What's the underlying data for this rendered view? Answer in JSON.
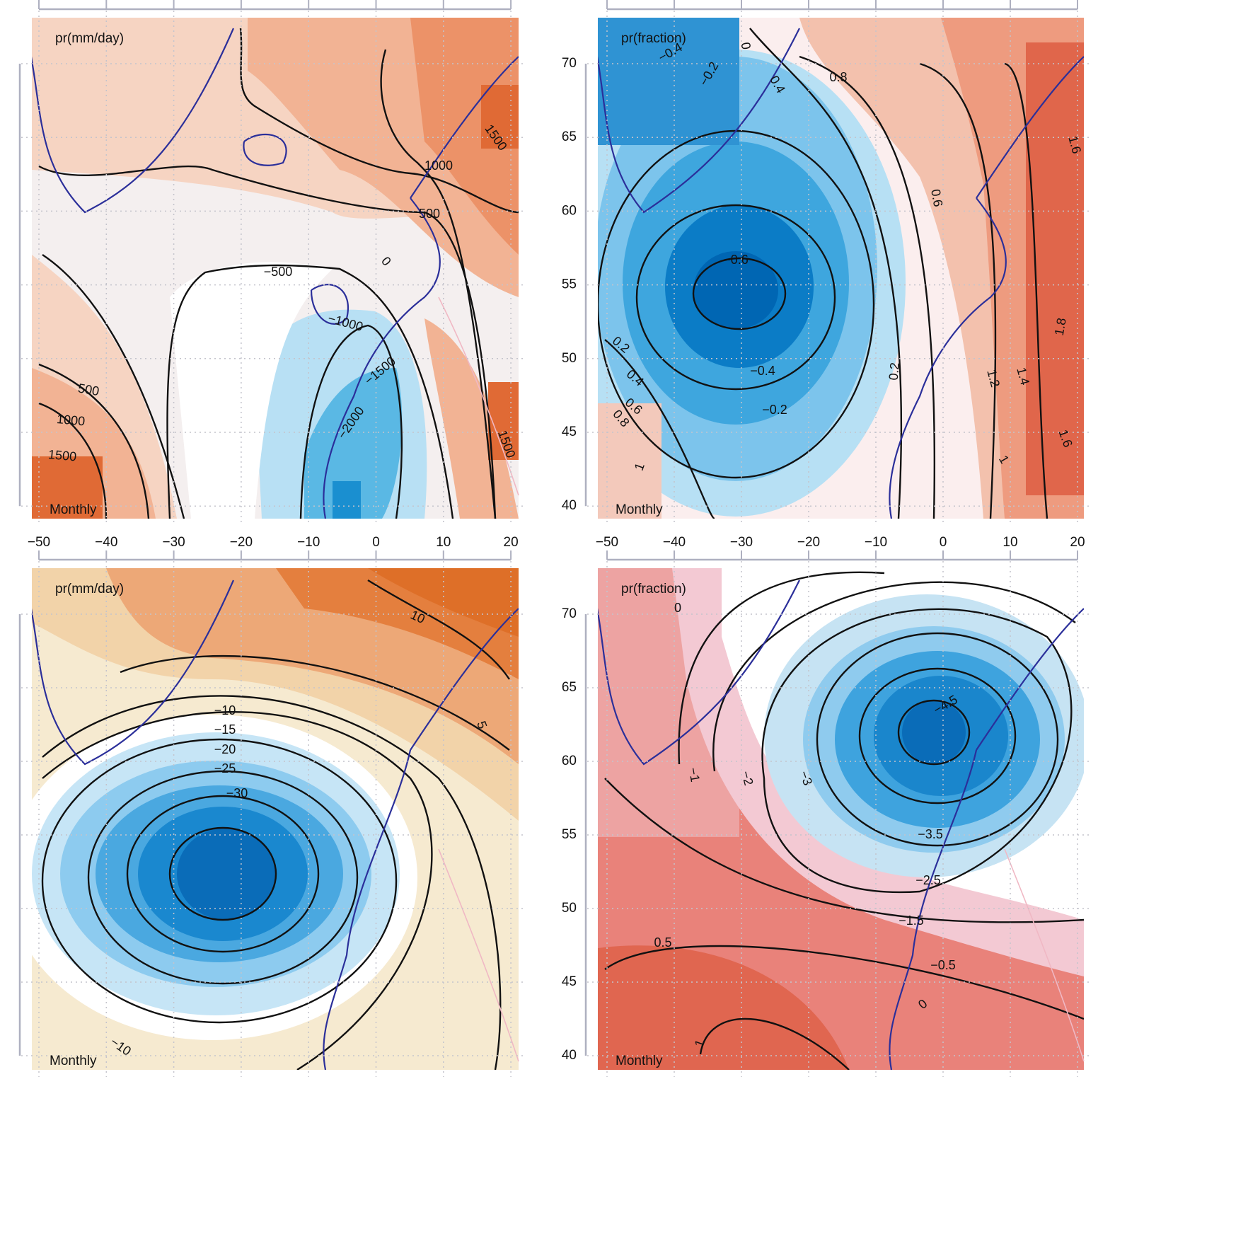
{
  "x_ticks": [
    "−50",
    "−40",
    "−30",
    "−20",
    "−10",
    "0",
    "10",
    "20"
  ],
  "y_ticks": [
    "70",
    "65",
    "60",
    "55",
    "50",
    "45",
    "40"
  ],
  "panels": [
    {
      "label": "pr(mm/day)",
      "footer": "Monthly",
      "contour_labels": [
        "1500",
        "1000",
        "500",
        "0",
        "−500",
        "−1000",
        "−1500",
        "−2000",
        "500",
        "1000",
        "1500",
        "1500"
      ]
    },
    {
      "label": "pr(fraction)",
      "footer": "Monthly",
      "contour_labels": [
        "−0.4",
        "0",
        "−0.2",
        "0.4",
        "0.8",
        "0.6",
        "−0.6",
        "0.2",
        "0.4",
        "0.6",
        "0.8",
        "1",
        "−0.4",
        "−0.2",
        "0.2",
        "1.2",
        "1.4",
        "1.8",
        "1.6",
        "1.6",
        "1"
      ]
    },
    {
      "label": "pr(mm/day)",
      "footer": "Monthly",
      "contour_labels": [
        "10",
        "5",
        "−10",
        "−15",
        "−20",
        "−25",
        "−30",
        "−10"
      ]
    },
    {
      "label": "pr(fraction)",
      "footer": "Monthly",
      "contour_labels": [
        "0",
        "−1",
        "−2",
        "−3",
        "−4.5",
        "−3.5",
        "−2.5",
        "−1.5",
        "0.5",
        "−0.5",
        "0",
        "1"
      ]
    }
  ]
}
